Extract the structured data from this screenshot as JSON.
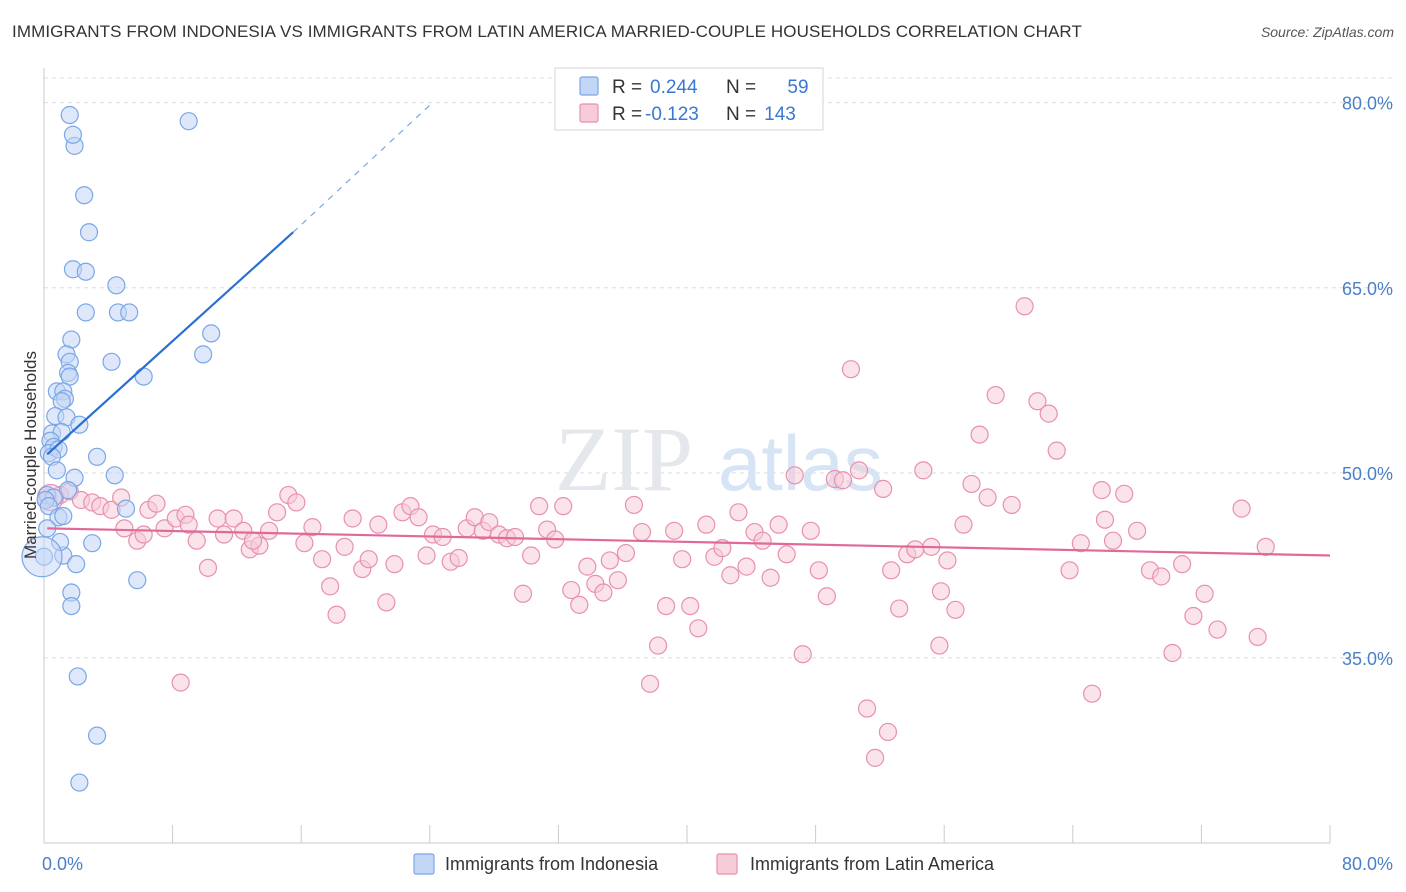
{
  "title": "IMMIGRANTS FROM INDONESIA VS IMMIGRANTS FROM LATIN AMERICA MARRIED-COUPLE HOUSEHOLDS CORRELATION CHART",
  "source": "Source: ZipAtlas.com",
  "watermark": {
    "zip": "ZIP",
    "atlas": "atlas"
  },
  "colors": {
    "blue": "#7aa7e6",
    "blue_fill": "#c3d6f5",
    "blue_line": "#2a6fd1",
    "pink": "#e891ad",
    "pink_fill": "#f6ccd9",
    "pink_line": "#e0699a",
    "grid": "#d9dde3",
    "value_text": "#3a78d4"
  },
  "legend": {
    "rows": [
      {
        "r_label": "R =",
        "r_value": "0.244",
        "n_label": "N =",
        "n_value": "59"
      },
      {
        "r_label": "R =",
        "r_value": "-0.123",
        "n_label": "N =",
        "n_value": "143"
      }
    ]
  },
  "chart_data": {
    "type": "scatter",
    "title": "IMMIGRANTS FROM INDONESIA VS IMMIGRANTS FROM LATIN AMERICA MARRIED-COUPLE HOUSEHOLDS CORRELATION CHART",
    "xlabel": "",
    "ylabel": "Married-couple Households",
    "xlim": [
      0,
      80
    ],
    "ylim": [
      20,
      82
    ],
    "x_tick_labels": [
      "0.0%",
      "80.0%"
    ],
    "y_ticks": [
      35,
      50,
      65,
      80
    ],
    "y_tick_labels": [
      "35.0%",
      "50.0%",
      "65.0%",
      "80.0%"
    ],
    "grid": true,
    "legend_position": "top-center",
    "series": [
      {
        "name": "Immigrants from Indonesia",
        "color": "blue",
        "r": 0.244,
        "n": 59,
        "trend": {
          "x0": 0.2,
          "y0": 51.5,
          "x1": 15.5,
          "y1": 69.5,
          "dash_to_x": 24,
          "dash_to_y": 79.8
        },
        "points": [
          [
            1.6,
            79.0
          ],
          [
            1.9,
            76.5
          ],
          [
            1.8,
            77.4
          ],
          [
            9.0,
            78.5
          ],
          [
            2.5,
            72.5
          ],
          [
            2.8,
            69.5
          ],
          [
            1.8,
            66.5
          ],
          [
            2.6,
            66.3
          ],
          [
            4.5,
            65.2
          ],
          [
            2.6,
            63.0
          ],
          [
            4.6,
            63.0
          ],
          [
            5.3,
            63.0
          ],
          [
            10.4,
            61.3
          ],
          [
            1.7,
            60.8
          ],
          [
            1.4,
            59.6
          ],
          [
            1.6,
            59.0
          ],
          [
            4.2,
            59.0
          ],
          [
            1.5,
            58.1
          ],
          [
            1.6,
            57.8
          ],
          [
            6.2,
            57.8
          ],
          [
            0.8,
            56.6
          ],
          [
            1.2,
            56.6
          ],
          [
            1.3,
            56.0
          ],
          [
            1.1,
            55.8
          ],
          [
            0.7,
            54.6
          ],
          [
            1.4,
            54.5
          ],
          [
            2.2,
            53.9
          ],
          [
            0.5,
            53.2
          ],
          [
            1.1,
            53.3
          ],
          [
            0.4,
            52.6
          ],
          [
            0.6,
            52.1
          ],
          [
            0.3,
            51.6
          ],
          [
            0.9,
            51.9
          ],
          [
            0.5,
            51.3
          ],
          [
            3.3,
            51.3
          ],
          [
            0.8,
            50.2
          ],
          [
            1.9,
            49.6
          ],
          [
            4.4,
            49.8
          ],
          [
            1.5,
            48.6
          ],
          [
            0.2,
            48.2
          ],
          [
            0.6,
            48.0
          ],
          [
            0.1,
            47.8
          ],
          [
            0.3,
            47.3
          ],
          [
            5.1,
            47.1
          ],
          [
            0.9,
            46.4
          ],
          [
            1.2,
            46.5
          ],
          [
            0.2,
            45.5
          ],
          [
            3.0,
            44.3
          ],
          [
            9.9,
            59.6
          ],
          [
            0.0,
            43.2
          ],
          [
            1.2,
            43.3
          ],
          [
            2.0,
            42.6
          ],
          [
            5.8,
            41.3
          ],
          [
            1.7,
            40.3
          ],
          [
            1.7,
            39.2
          ],
          [
            2.1,
            33.5
          ],
          [
            3.3,
            28.7
          ],
          [
            2.2,
            24.9
          ],
          [
            1.0,
            44.4
          ]
        ]
      },
      {
        "name": "Immigrants from Latin America",
        "color": "pink",
        "r": -0.123,
        "n": 143,
        "trend": {
          "x0": 0.2,
          "y0": 45.5,
          "x1": 80,
          "y1": 43.3
        },
        "points": [
          [
            0.3,
            48.0
          ],
          [
            1.0,
            48.2
          ],
          [
            1.6,
            48.5
          ],
          [
            2.3,
            47.8
          ],
          [
            3.0,
            47.6
          ],
          [
            3.5,
            47.3
          ],
          [
            4.2,
            47.0
          ],
          [
            4.8,
            48.0
          ],
          [
            5.0,
            45.5
          ],
          [
            5.8,
            44.5
          ],
          [
            6.5,
            47.0
          ],
          [
            7.0,
            47.5
          ],
          [
            7.5,
            45.5
          ],
          [
            8.2,
            46.3
          ],
          [
            8.8,
            46.6
          ],
          [
            9.0,
            45.8
          ],
          [
            9.5,
            44.5
          ],
          [
            10.2,
            42.3
          ],
          [
            10.8,
            46.3
          ],
          [
            11.2,
            45.0
          ],
          [
            11.8,
            46.3
          ],
          [
            12.4,
            45.3
          ],
          [
            12.8,
            43.8
          ],
          [
            13.4,
            44.1
          ],
          [
            14.0,
            45.3
          ],
          [
            14.5,
            46.8
          ],
          [
            15.2,
            48.2
          ],
          [
            15.7,
            47.6
          ],
          [
            16.2,
            44.3
          ],
          [
            16.7,
            45.6
          ],
          [
            17.3,
            43.0
          ],
          [
            17.8,
            40.8
          ],
          [
            18.2,
            38.5
          ],
          [
            18.7,
            44.0
          ],
          [
            19.2,
            46.3
          ],
          [
            19.8,
            42.2
          ],
          [
            20.2,
            43.0
          ],
          [
            20.8,
            45.8
          ],
          [
            21.3,
            39.5
          ],
          [
            21.8,
            42.6
          ],
          [
            22.3,
            46.8
          ],
          [
            22.8,
            47.3
          ],
          [
            23.3,
            46.4
          ],
          [
            23.8,
            43.3
          ],
          [
            24.2,
            45.0
          ],
          [
            24.8,
            44.8
          ],
          [
            25.3,
            42.8
          ],
          [
            25.8,
            43.1
          ],
          [
            26.3,
            45.5
          ],
          [
            26.8,
            46.4
          ],
          [
            27.3,
            45.3
          ],
          [
            27.7,
            46.0
          ],
          [
            28.3,
            45.0
          ],
          [
            28.8,
            44.7
          ],
          [
            29.3,
            44.8
          ],
          [
            29.8,
            40.2
          ],
          [
            30.3,
            43.3
          ],
          [
            30.8,
            47.3
          ],
          [
            31.3,
            45.4
          ],
          [
            31.8,
            44.6
          ],
          [
            32.3,
            47.3
          ],
          [
            32.8,
            40.5
          ],
          [
            33.3,
            39.3
          ],
          [
            33.8,
            42.4
          ],
          [
            34.3,
            41.0
          ],
          [
            34.8,
            40.3
          ],
          [
            35.2,
            42.9
          ],
          [
            35.7,
            41.3
          ],
          [
            36.2,
            43.5
          ],
          [
            36.7,
            47.4
          ],
          [
            37.2,
            45.2
          ],
          [
            37.7,
            32.9
          ],
          [
            38.2,
            36.0
          ],
          [
            38.7,
            39.2
          ],
          [
            39.2,
            45.3
          ],
          [
            39.7,
            43.0
          ],
          [
            40.2,
            39.2
          ],
          [
            40.7,
            37.4
          ],
          [
            41.2,
            45.8
          ],
          [
            41.7,
            43.2
          ],
          [
            42.2,
            43.9
          ],
          [
            42.7,
            41.7
          ],
          [
            43.2,
            46.8
          ],
          [
            43.7,
            42.4
          ],
          [
            44.2,
            45.2
          ],
          [
            44.7,
            44.5
          ],
          [
            45.2,
            41.5
          ],
          [
            45.7,
            45.8
          ],
          [
            46.2,
            43.4
          ],
          [
            46.7,
            49.8
          ],
          [
            47.2,
            35.3
          ],
          [
            47.7,
            45.3
          ],
          [
            48.2,
            42.1
          ],
          [
            48.7,
            40.0
          ],
          [
            49.2,
            49.5
          ],
          [
            49.7,
            49.4
          ],
          [
            50.2,
            58.4
          ],
          [
            50.7,
            50.2
          ],
          [
            51.2,
            30.9
          ],
          [
            51.7,
            26.9
          ],
          [
            52.2,
            48.7
          ],
          [
            52.7,
            42.1
          ],
          [
            53.2,
            39.0
          ],
          [
            53.7,
            43.4
          ],
          [
            54.2,
            43.8
          ],
          [
            54.7,
            50.2
          ],
          [
            55.2,
            44.0
          ],
          [
            55.7,
            36.0
          ],
          [
            56.2,
            42.9
          ],
          [
            56.7,
            38.9
          ],
          [
            57.2,
            45.8
          ],
          [
            57.7,
            49.1
          ],
          [
            58.2,
            53.1
          ],
          [
            58.7,
            48.0
          ],
          [
            59.2,
            56.3
          ],
          [
            60.2,
            47.4
          ],
          [
            61.0,
            63.5
          ],
          [
            61.8,
            55.8
          ],
          [
            62.5,
            54.8
          ],
          [
            63.0,
            51.8
          ],
          [
            63.8,
            42.1
          ],
          [
            64.5,
            44.3
          ],
          [
            65.2,
            32.1
          ],
          [
            65.8,
            48.6
          ],
          [
            66.5,
            44.5
          ],
          [
            67.2,
            48.3
          ],
          [
            68.0,
            45.3
          ],
          [
            68.8,
            42.1
          ],
          [
            69.5,
            41.6
          ],
          [
            70.2,
            35.4
          ],
          [
            70.8,
            42.6
          ],
          [
            71.5,
            38.4
          ],
          [
            72.2,
            40.2
          ],
          [
            73.0,
            37.3
          ],
          [
            74.5,
            47.1
          ],
          [
            75.5,
            36.7
          ],
          [
            8.5,
            33.0
          ],
          [
            52.5,
            29.0
          ],
          [
            55.8,
            40.4
          ],
          [
            66.0,
            46.2
          ],
          [
            76.0,
            44.0
          ],
          [
            6.2,
            45.0
          ],
          [
            13.0,
            44.5
          ]
        ]
      }
    ]
  },
  "bottom_legend": [
    {
      "label": "Immigrants from Indonesia"
    },
    {
      "label": "Immigrants from Latin America"
    }
  ]
}
